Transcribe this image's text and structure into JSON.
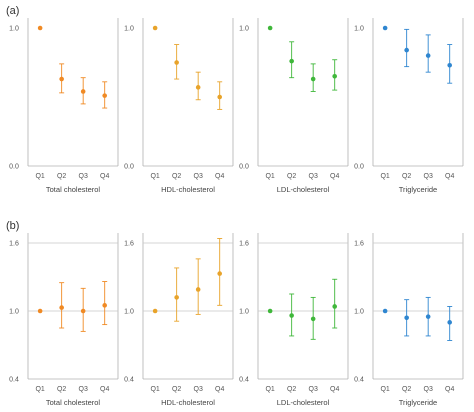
{
  "figure": {
    "row_labels": [
      "(a)",
      "(b)"
    ]
  },
  "chart_data": [
    {
      "type": "scatter",
      "panel": "(a)",
      "title": "",
      "xlabel": "Total cholesterol",
      "ylabel": "",
      "categories": [
        "Q1",
        "Q2",
        "Q3",
        "Q4"
      ],
      "ylim": [
        0.0,
        1.0
      ],
      "yticks": [
        "0.0",
        "1.0"
      ],
      "values": [
        1.0,
        0.63,
        0.54,
        0.51
      ],
      "ci_lower": [
        1.0,
        0.53,
        0.45,
        0.42
      ],
      "ci_upper": [
        1.0,
        0.74,
        0.64,
        0.61
      ],
      "color": "#f08a24"
    },
    {
      "type": "scatter",
      "panel": "(a)",
      "title": "",
      "xlabel": "HDL-cholesterol",
      "ylabel": "",
      "categories": [
        "Q1",
        "Q2",
        "Q3",
        "Q4"
      ],
      "ylim": [
        0.0,
        1.0
      ],
      "yticks": [
        "0.0",
        "1.0"
      ],
      "values": [
        1.0,
        0.75,
        0.57,
        0.5
      ],
      "ci_lower": [
        1.0,
        0.63,
        0.48,
        0.41
      ],
      "ci_upper": [
        1.0,
        0.88,
        0.68,
        0.61
      ],
      "color": "#e8a32a"
    },
    {
      "type": "scatter",
      "panel": "(a)",
      "title": "",
      "xlabel": "LDL-cholesterol",
      "ylabel": "",
      "categories": [
        "Q1",
        "Q2",
        "Q3",
        "Q4"
      ],
      "ylim": [
        0.0,
        1.0
      ],
      "yticks": [
        "0.0",
        "1.0"
      ],
      "values": [
        1.0,
        0.76,
        0.63,
        0.65
      ],
      "ci_lower": [
        1.0,
        0.64,
        0.54,
        0.55
      ],
      "ci_upper": [
        1.0,
        0.9,
        0.74,
        0.77
      ],
      "color": "#3fb73a"
    },
    {
      "type": "scatter",
      "panel": "(a)",
      "title": "",
      "xlabel": "Triglyceride",
      "ylabel": "",
      "categories": [
        "Q1",
        "Q2",
        "Q3",
        "Q4"
      ],
      "ylim": [
        0.0,
        1.0
      ],
      "yticks": [
        "0.0",
        "1.0"
      ],
      "values": [
        1.0,
        0.84,
        0.8,
        0.73
      ],
      "ci_lower": [
        1.0,
        0.72,
        0.68,
        0.6
      ],
      "ci_upper": [
        1.0,
        0.99,
        0.95,
        0.88
      ],
      "color": "#2f86d0"
    },
    {
      "type": "scatter",
      "panel": "(b)",
      "title": "",
      "xlabel": "Total cholesterol",
      "ylabel": "",
      "categories": [
        "Q1",
        "Q2",
        "Q3",
        "Q4"
      ],
      "ylim": [
        0.4,
        1.6
      ],
      "yticks": [
        "0.4",
        "1.0",
        "1.6"
      ],
      "values": [
        1.0,
        1.03,
        1.0,
        1.05
      ],
      "ci_lower": [
        1.0,
        0.85,
        0.82,
        0.88
      ],
      "ci_upper": [
        1.0,
        1.25,
        1.2,
        1.26
      ],
      "color": "#f08a24"
    },
    {
      "type": "scatter",
      "panel": "(b)",
      "title": "",
      "xlabel": "HDL-cholesterol",
      "ylabel": "",
      "categories": [
        "Q1",
        "Q2",
        "Q3",
        "Q4"
      ],
      "ylim": [
        0.4,
        1.6
      ],
      "yticks": [
        "0.4",
        "1.0",
        "1.6"
      ],
      "values": [
        1.0,
        1.12,
        1.19,
        1.33
      ],
      "ci_lower": [
        1.0,
        0.91,
        0.97,
        1.05
      ],
      "ci_upper": [
        1.0,
        1.38,
        1.46,
        1.64
      ],
      "color": "#e8a32a"
    },
    {
      "type": "scatter",
      "panel": "(b)",
      "title": "",
      "xlabel": "LDL-cholesterol",
      "ylabel": "",
      "categories": [
        "Q1",
        "Q2",
        "Q3",
        "Q4"
      ],
      "ylim": [
        0.4,
        1.6
      ],
      "yticks": [
        "0.4",
        "1.0",
        "1.6"
      ],
      "values": [
        1.0,
        0.96,
        0.93,
        1.04
      ],
      "ci_lower": [
        1.0,
        0.78,
        0.75,
        0.85
      ],
      "ci_upper": [
        1.0,
        1.15,
        1.12,
        1.28
      ],
      "color": "#3fb73a"
    },
    {
      "type": "scatter",
      "panel": "(b)",
      "title": "",
      "xlabel": "Triglyceride",
      "ylabel": "",
      "categories": [
        "Q1",
        "Q2",
        "Q3",
        "Q4"
      ],
      "ylim": [
        0.4,
        1.6
      ],
      "yticks": [
        "0.4",
        "1.0",
        "1.6"
      ],
      "values": [
        1.0,
        0.94,
        0.95,
        0.9
      ],
      "ci_lower": [
        1.0,
        0.78,
        0.78,
        0.74
      ],
      "ci_upper": [
        1.0,
        1.1,
        1.12,
        1.04
      ],
      "color": "#2f86d0"
    }
  ]
}
